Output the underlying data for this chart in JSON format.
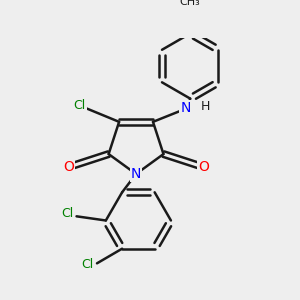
{
  "background_color": "#eeeeee",
  "bond_color": "#1a1a1a",
  "bond_width": 1.8,
  "atom_colors": {
    "Cl": "#008000",
    "N": "#0000ff",
    "O": "#ff0000",
    "C": "#1a1a1a",
    "H": "#1a1a1a"
  },
  "font_size": 9,
  "figsize": [
    3.0,
    3.0
  ],
  "dpi": 100
}
